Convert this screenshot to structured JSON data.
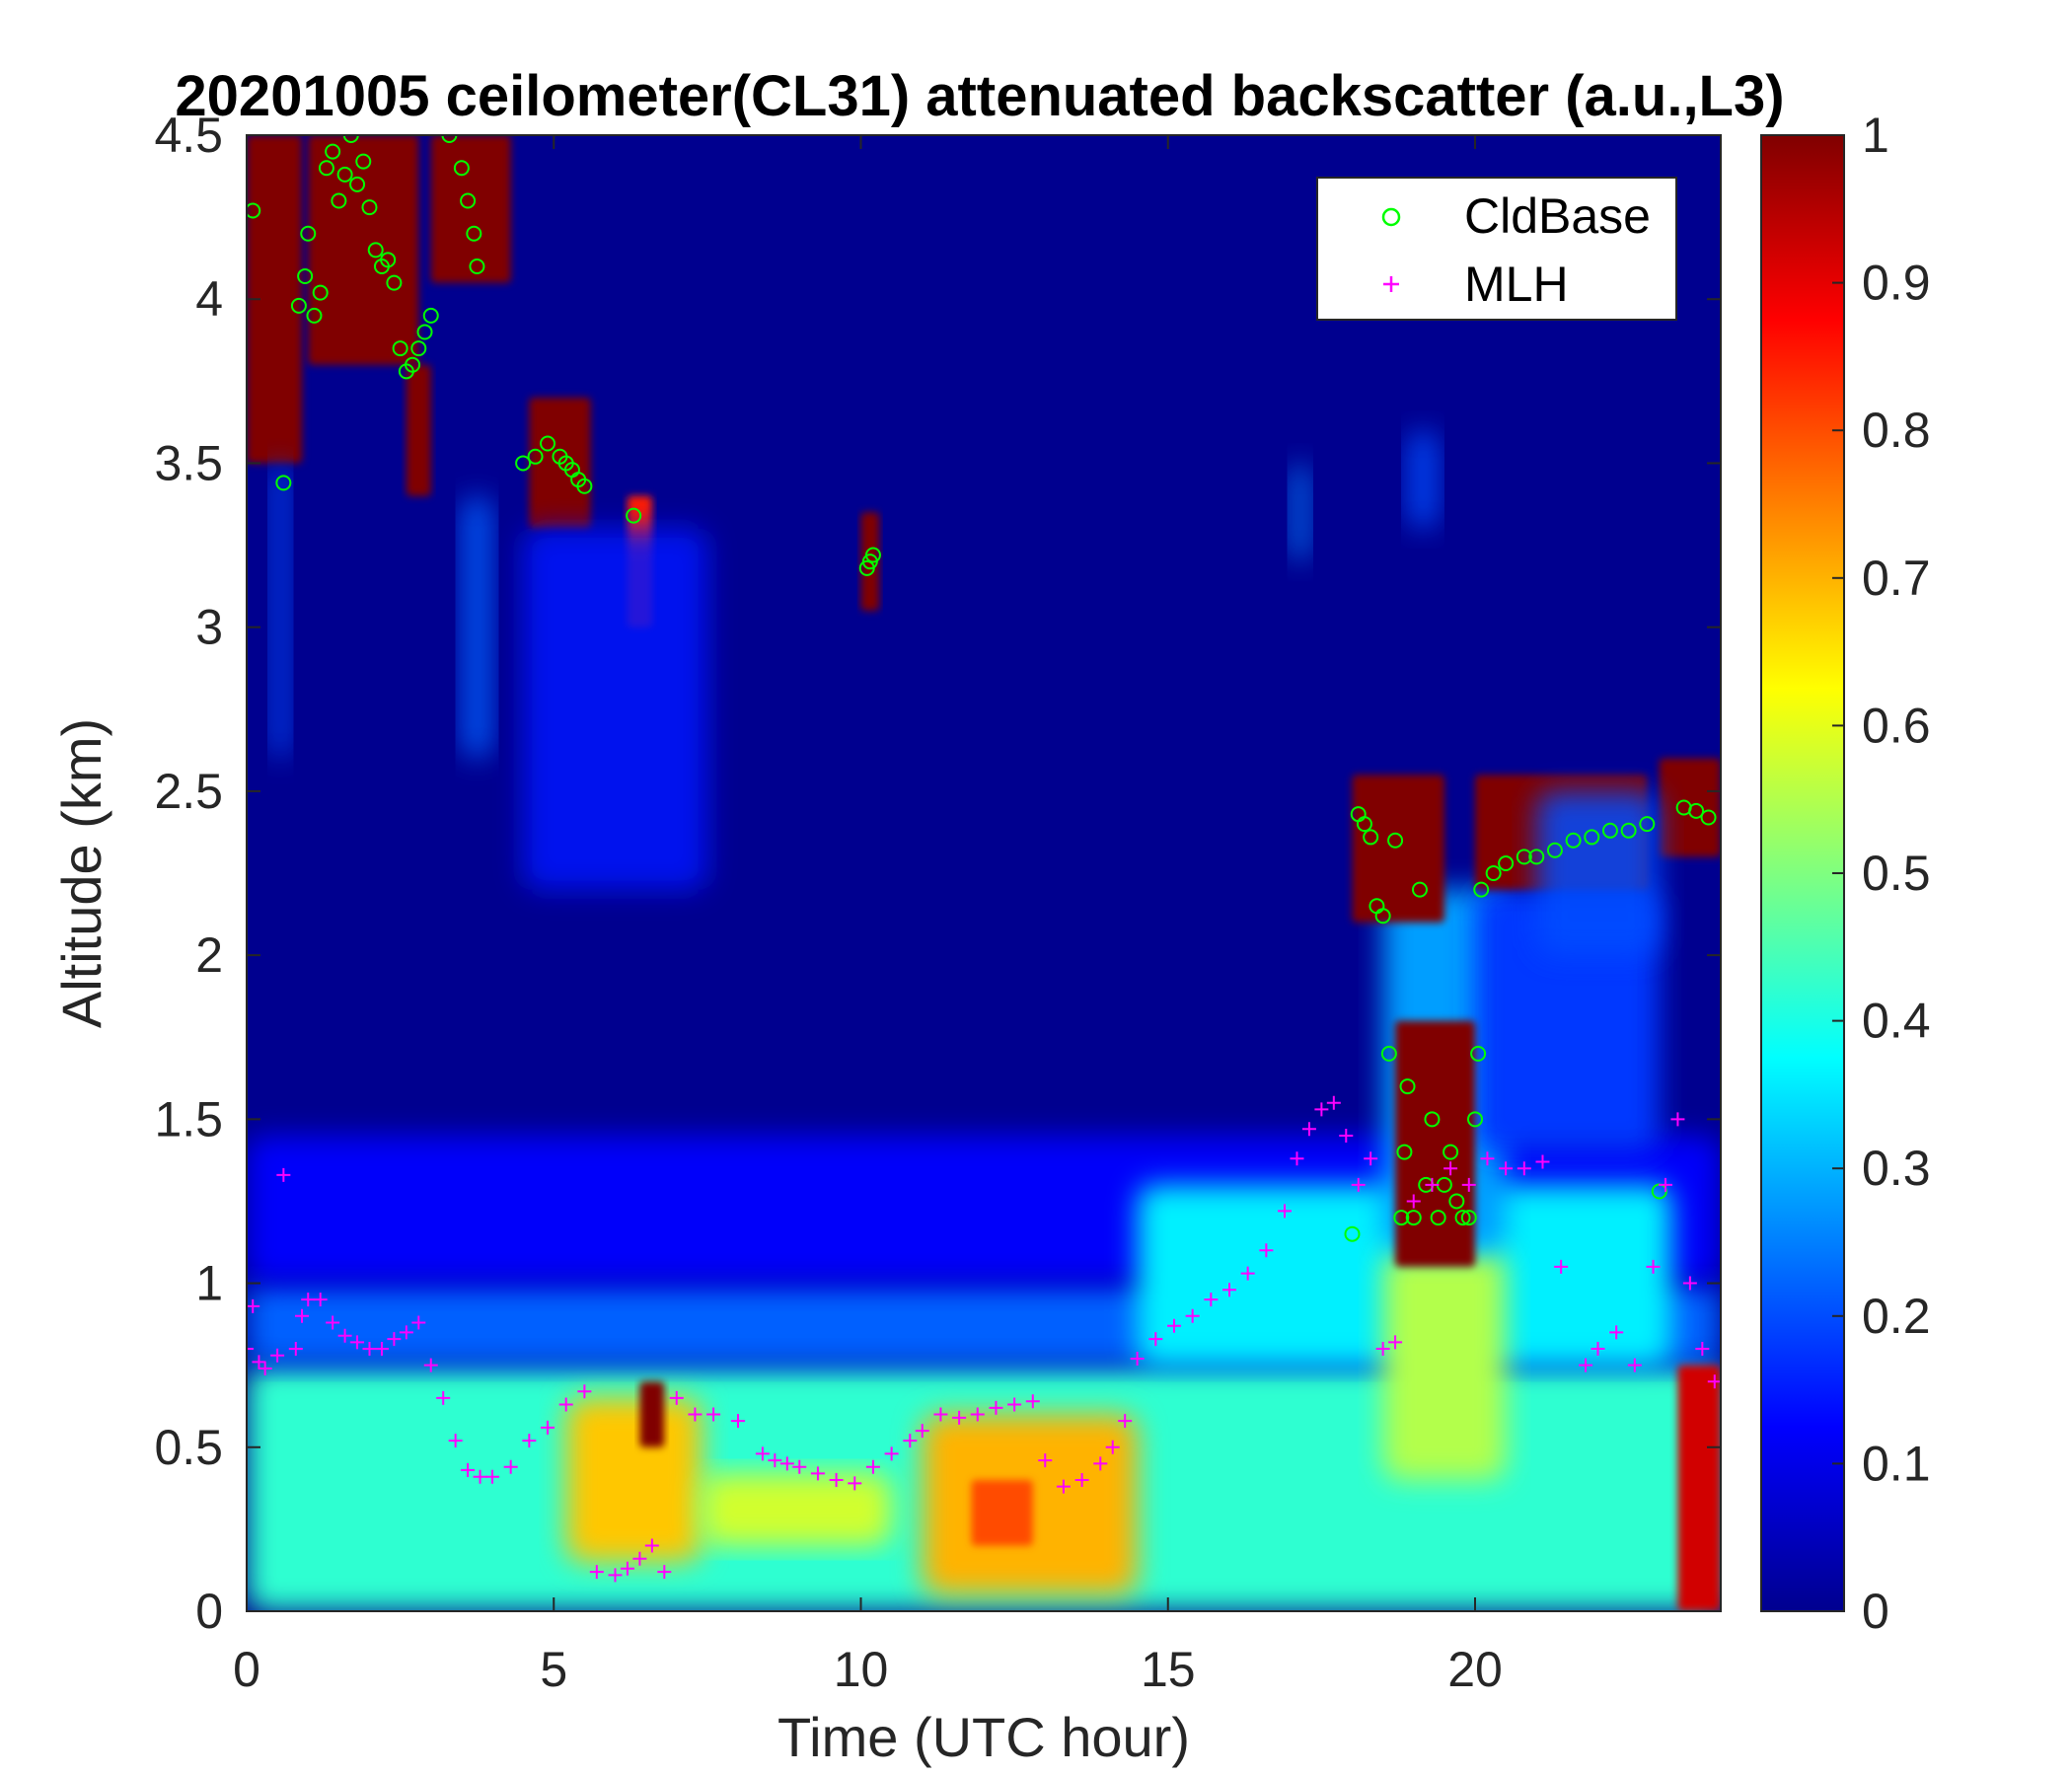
{
  "chart_data": {
    "type": "heatmap",
    "title": "20201005 ceilometer(CL31) attenuated backscatter (a.u.,L3)",
    "xlabel": "Time (UTC hour)",
    "ylabel": "Altitude (km)",
    "xlim": [
      0,
      24
    ],
    "ylim": [
      0,
      4.5
    ],
    "x_ticks": [
      0,
      5,
      10,
      15,
      20
    ],
    "y_ticks": [
      0,
      0.5,
      1,
      1.5,
      2,
      2.5,
      3,
      3.5,
      4,
      4.5
    ],
    "x_tick_labels": [
      "0",
      "5",
      "10",
      "15",
      "20"
    ],
    "y_tick_labels": [
      "0",
      "0.5",
      "1",
      "1.5",
      "2",
      "2.5",
      "3",
      "3.5",
      "4",
      "4.5"
    ],
    "colorbar": {
      "colormap": "jet",
      "clim": [
        0,
        1
      ],
      "ticks": [
        0,
        0.1,
        0.2,
        0.3,
        0.4,
        0.5,
        0.6,
        0.7,
        0.8,
        0.9,
        1
      ],
      "tick_labels": [
        "0",
        "0.1",
        "0.2",
        "0.3",
        "0.4",
        "0.5",
        "0.6",
        "0.7",
        "0.8",
        "0.9",
        "1"
      ]
    },
    "legend": {
      "placement": "top-right",
      "entries": [
        {
          "name": "CldBase",
          "marker": "circle",
          "color": "#00ff00"
        },
        {
          "name": "MLH",
          "marker": "plus",
          "color": "#ff00ff"
        }
      ]
    },
    "background_value": 0.02,
    "field_regions": [
      {
        "t0": 0,
        "t1": 24,
        "h0": 0,
        "h1": 0.75,
        "value": 0.42
      },
      {
        "t0": 0,
        "t1": 24,
        "h0": 0.75,
        "h1": 1.0,
        "value": 0.22
      },
      {
        "t0": 0,
        "t1": 24,
        "h0": 1.0,
        "h1": 1.45,
        "value": 0.12
      },
      {
        "t0": 14.5,
        "t1": 23.2,
        "h0": 0.75,
        "h1": 1.3,
        "value": 0.36
      },
      {
        "t0": 18.5,
        "t1": 20.5,
        "h0": 0.4,
        "h1": 1.1,
        "value": 0.55
      },
      {
        "t0": 18.5,
        "t1": 20.5,
        "h0": 1.1,
        "h1": 2.2,
        "value": 0.28
      },
      {
        "t0": 20.0,
        "t1": 23.0,
        "h0": 1.4,
        "h1": 2.2,
        "value": 0.18
      },
      {
        "t0": 5.2,
        "t1": 7.4,
        "h0": 0.15,
        "h1": 0.65,
        "value": 0.68
      },
      {
        "t0": 6.4,
        "t1": 6.8,
        "h0": 0.5,
        "h1": 0.7,
        "value": 1.0
      },
      {
        "t0": 7.4,
        "t1": 10.5,
        "h0": 0.2,
        "h1": 0.42,
        "value": 0.58
      },
      {
        "t0": 11.0,
        "t1": 14.5,
        "h0": 0.05,
        "h1": 0.6,
        "value": 0.7
      },
      {
        "t0": 11.8,
        "t1": 12.8,
        "h0": 0.2,
        "h1": 0.4,
        "value": 0.8
      },
      {
        "t0": 23.3,
        "t1": 24.0,
        "h0": 0.0,
        "h1": 0.75,
        "value": 0.92
      },
      {
        "t0": 0.0,
        "t1": 0.9,
        "h0": 3.5,
        "h1": 4.5,
        "value": 1.0
      },
      {
        "t0": 1.0,
        "t1": 2.8,
        "h0": 3.8,
        "h1": 4.5,
        "value": 1.0
      },
      {
        "t0": 2.6,
        "t1": 3.0,
        "h0": 3.4,
        "h1": 3.8,
        "value": 1.0
      },
      {
        "t0": 3.0,
        "t1": 4.3,
        "h0": 4.05,
        "h1": 4.5,
        "value": 1.0
      },
      {
        "t0": 4.6,
        "t1": 5.6,
        "h0": 3.3,
        "h1": 3.7,
        "value": 1.0
      },
      {
        "t0": 6.2,
        "t1": 6.6,
        "h0": 3.0,
        "h1": 3.4,
        "value": 0.85
      },
      {
        "t0": 10.0,
        "t1": 10.3,
        "h0": 3.05,
        "h1": 3.35,
        "value": 1.0
      },
      {
        "t0": 18.0,
        "t1": 19.5,
        "h0": 2.1,
        "h1": 2.55,
        "value": 1.0
      },
      {
        "t0": 18.7,
        "t1": 20.0,
        "h0": 1.05,
        "h1": 1.8,
        "value": 1.0
      },
      {
        "t0": 20.0,
        "t1": 22.8,
        "h0": 2.2,
        "h1": 2.55,
        "value": 1.0
      },
      {
        "t0": 23.0,
        "t1": 24.0,
        "h0": 2.3,
        "h1": 2.6,
        "value": 1.0
      },
      {
        "t0": 0.4,
        "t1": 0.7,
        "h0": 2.6,
        "h1": 3.5,
        "value": 0.2
      },
      {
        "t0": 3.5,
        "t1": 4.0,
        "h0": 2.6,
        "h1": 3.4,
        "value": 0.22
      },
      {
        "t0": 4.5,
        "t1": 7.5,
        "h0": 2.2,
        "h1": 3.3,
        "value": 0.15
      },
      {
        "t0": 17.0,
        "t1": 17.3,
        "h0": 3.2,
        "h1": 3.5,
        "value": 0.25
      },
      {
        "t0": 18.9,
        "t1": 19.4,
        "h0": 3.3,
        "h1": 3.6,
        "value": 0.2
      },
      {
        "t0": 21.0,
        "t1": 23.0,
        "h0": 2.0,
        "h1": 2.5,
        "value": 0.2
      }
    ],
    "series": [
      {
        "name": "CldBase",
        "marker": "circle",
        "color": "#00ff00",
        "x": [
          0.1,
          0.6,
          0.85,
          0.95,
          1.0,
          1.1,
          1.2,
          1.3,
          1.4,
          1.5,
          1.6,
          1.7,
          1.8,
          1.9,
          2.0,
          2.1,
          2.2,
          2.3,
          2.4,
          2.5,
          2.6,
          2.7,
          2.8,
          2.9,
          3.0,
          3.3,
          3.5,
          3.6,
          3.7,
          3.75,
          4.5,
          4.7,
          4.9,
          5.1,
          5.2,
          5.3,
          5.4,
          5.5,
          6.3,
          10.1,
          10.15,
          10.2,
          18.0,
          18.1,
          18.2,
          18.3,
          18.4,
          18.5,
          18.6,
          18.7,
          18.8,
          18.85,
          18.9,
          19.0,
          19.1,
          19.2,
          19.3,
          19.4,
          19.5,
          19.6,
          19.7,
          19.8,
          19.9,
          20.0,
          20.05,
          20.1,
          20.3,
          20.5,
          20.8,
          21.0,
          21.3,
          21.6,
          21.9,
          22.2,
          22.5,
          22.8,
          23.0,
          23.4,
          23.6,
          23.8
        ],
        "y": [
          4.27,
          3.44,
          3.98,
          4.07,
          4.2,
          3.95,
          4.02,
          4.4,
          4.45,
          4.3,
          4.38,
          4.5,
          4.35,
          4.42,
          4.28,
          4.15,
          4.1,
          4.12,
          4.05,
          3.85,
          3.78,
          3.8,
          3.85,
          3.9,
          3.95,
          4.5,
          4.4,
          4.3,
          4.2,
          4.1,
          3.5,
          3.52,
          3.56,
          3.52,
          3.5,
          3.48,
          3.45,
          3.43,
          3.34,
          3.18,
          3.2,
          3.22,
          1.15,
          2.43,
          2.4,
          2.36,
          2.15,
          2.12,
          1.7,
          2.35,
          1.2,
          1.4,
          1.6,
          1.2,
          2.2,
          1.3,
          1.5,
          1.2,
          1.3,
          1.4,
          1.25,
          1.2,
          1.2,
          1.5,
          1.7,
          2.2,
          2.25,
          2.28,
          2.3,
          2.3,
          2.32,
          2.35,
          2.36,
          2.38,
          2.38,
          2.4,
          1.28,
          2.45,
          2.44,
          2.42
        ]
      },
      {
        "name": "MLH",
        "marker": "plus",
        "color": "#ff00ff",
        "x": [
          0.0,
          0.1,
          0.2,
          0.3,
          0.5,
          0.6,
          0.8,
          0.9,
          1.0,
          1.2,
          1.4,
          1.6,
          1.8,
          2.0,
          2.2,
          2.4,
          2.6,
          2.8,
          3.0,
          3.2,
          3.4,
          3.6,
          3.8,
          4.0,
          4.3,
          4.6,
          4.9,
          5.2,
          5.5,
          5.7,
          6.0,
          6.2,
          6.4,
          6.6,
          6.8,
          7.0,
          7.3,
          7.6,
          8.0,
          8.4,
          8.6,
          8.8,
          9.0,
          9.3,
          9.6,
          9.9,
          10.2,
          10.5,
          10.8,
          11.0,
          11.3,
          11.6,
          11.9,
          12.2,
          12.5,
          12.8,
          13.0,
          13.3,
          13.6,
          13.9,
          14.1,
          14.3,
          14.5,
          14.8,
          15.1,
          15.4,
          15.7,
          16.0,
          16.3,
          16.6,
          16.9,
          17.1,
          17.3,
          17.5,
          17.7,
          17.9,
          18.1,
          18.3,
          18.5,
          18.7,
          19.0,
          19.3,
          19.6,
          19.9,
          20.2,
          20.5,
          20.8,
          21.1,
          21.4,
          21.8,
          22.0,
          22.3,
          22.6,
          22.9,
          23.1,
          23.3,
          23.5,
          23.7,
          23.9
        ],
        "y": [
          0.8,
          0.93,
          0.76,
          0.74,
          0.78,
          1.33,
          0.8,
          0.9,
          0.95,
          0.95,
          0.88,
          0.84,
          0.82,
          0.8,
          0.8,
          0.83,
          0.85,
          0.88,
          0.75,
          0.65,
          0.52,
          0.43,
          0.41,
          0.41,
          0.44,
          0.52,
          0.56,
          0.63,
          0.67,
          0.12,
          0.11,
          0.13,
          0.16,
          0.2,
          0.12,
          0.65,
          0.6,
          0.6,
          0.58,
          0.48,
          0.46,
          0.45,
          0.44,
          0.42,
          0.4,
          0.39,
          0.44,
          0.48,
          0.52,
          0.55,
          0.6,
          0.59,
          0.6,
          0.62,
          0.63,
          0.64,
          0.46,
          0.38,
          0.4,
          0.45,
          0.5,
          0.58,
          0.77,
          0.83,
          0.87,
          0.9,
          0.95,
          0.98,
          1.03,
          1.1,
          1.22,
          1.38,
          1.47,
          1.53,
          1.55,
          1.45,
          1.3,
          1.38,
          0.8,
          0.82,
          1.25,
          1.3,
          1.35,
          1.3,
          1.38,
          1.35,
          1.35,
          1.37,
          1.05,
          0.75,
          0.8,
          0.85,
          0.75,
          1.05,
          1.3,
          1.5,
          1.0,
          0.8,
          0.7
        ]
      }
    ]
  }
}
